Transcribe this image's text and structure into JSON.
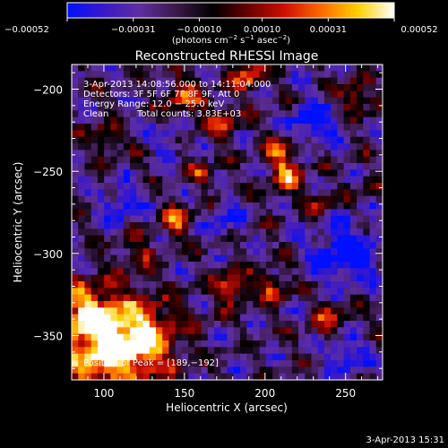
{
  "chart_data": {
    "type": "heatmap",
    "title": "Reconstructed RHESSI Image",
    "xlabel": "Heliocentric X (arcsec)",
    "ylabel": "Heliocentric Y (arcsec)",
    "xlim": [
      80,
      273
    ],
    "ylim": [
      -377,
      -185
    ],
    "x_ticks": [
      100,
      150,
      200,
      250
    ],
    "y_ticks": [
      -200,
      -250,
      -300,
      -350
    ],
    "x_tick_labels": [
      "100",
      "150",
      "200",
      "250"
    ],
    "y_tick_labels": [
      "−200",
      "−250",
      "−300",
      "−350"
    ],
    "colorbar": {
      "min": -0.00052,
      "max": 0.00052,
      "ticks": [
        -0.00052,
        -0.00031,
        -0.0001,
        0.0001,
        0.00031,
        0.00052
      ],
      "tick_labels": [
        "−0.00052",
        "−0.00031",
        "−0.00010",
        "0.00010",
        "0.00031",
        "0.00052"
      ],
      "units_parts": [
        "(photons cm",
        "−2",
        " s",
        "−1",
        " asec",
        "−2",
        ")"
      ]
    },
    "annotations": [
      "3-Apr-2013 14:08:56.000 to 14:11:04.000",
      "Detectors: 3F 5F 6F 7F 8F 9F, Att 0",
      "Energy Range: 12.0 − 25.0 keV",
      "Clean",
      "Total counts: 3.83E+03"
    ],
    "peak_label": "Position of Peak = [189,−192]",
    "footer_date": "3-Apr-2013 15:31",
    "grid": false,
    "legend": "none",
    "colormap": [
      "#0010ff",
      "#3a18c8",
      "#5e2ea0",
      "#3b1a4a",
      "#000000",
      "#6a0000",
      "#d01000",
      "#ff6a00",
      "#ffd000",
      "#ffffff"
    ]
  }
}
